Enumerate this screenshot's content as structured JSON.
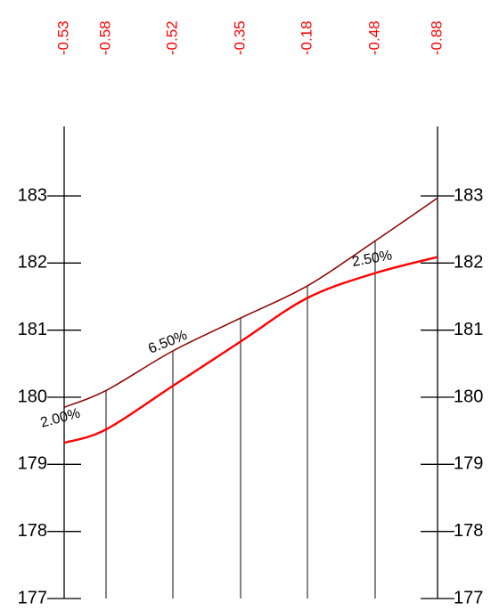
{
  "colors": {
    "diff_labels": "#ff0000",
    "design_line": "#8b0000",
    "ground_line": "#ff0000",
    "axes": "#000000",
    "stations": "#444444"
  },
  "elevation_axis": {
    "min": 177,
    "max": 183,
    "ticks": [
      "177",
      "178",
      "179",
      "180",
      "181",
      "182",
      "183"
    ]
  },
  "stations": [
    {
      "diff": "-0.53",
      "design_elev": 179.85,
      "ground_elev": 179.32
    },
    {
      "diff": "-0.58",
      "design_elev": 180.1,
      "ground_elev": 179.52
    },
    {
      "diff": "-0.52",
      "design_elev": 180.69,
      "ground_elev": 180.17
    },
    {
      "diff": "-0.35",
      "design_elev": 181.18,
      "ground_elev": 180.83
    },
    {
      "diff": "-0.18",
      "design_elev": 181.66,
      "ground_elev": 181.48
    },
    {
      "diff": "-0.48",
      "design_elev": 182.33,
      "ground_elev": 181.85
    },
    {
      "diff": "-0.88",
      "design_elev": 182.97,
      "ground_elev": 182.09
    }
  ],
  "grade_labels": [
    {
      "text": "2.00%",
      "station": 0,
      "elev": 179.55,
      "angle": -15
    },
    {
      "text": "6.50%",
      "station": 2,
      "elev": 180.65,
      "angle": -22
    },
    {
      "text": "2.50%",
      "station": 5,
      "elev": 181.95,
      "angle": -10
    }
  ]
}
